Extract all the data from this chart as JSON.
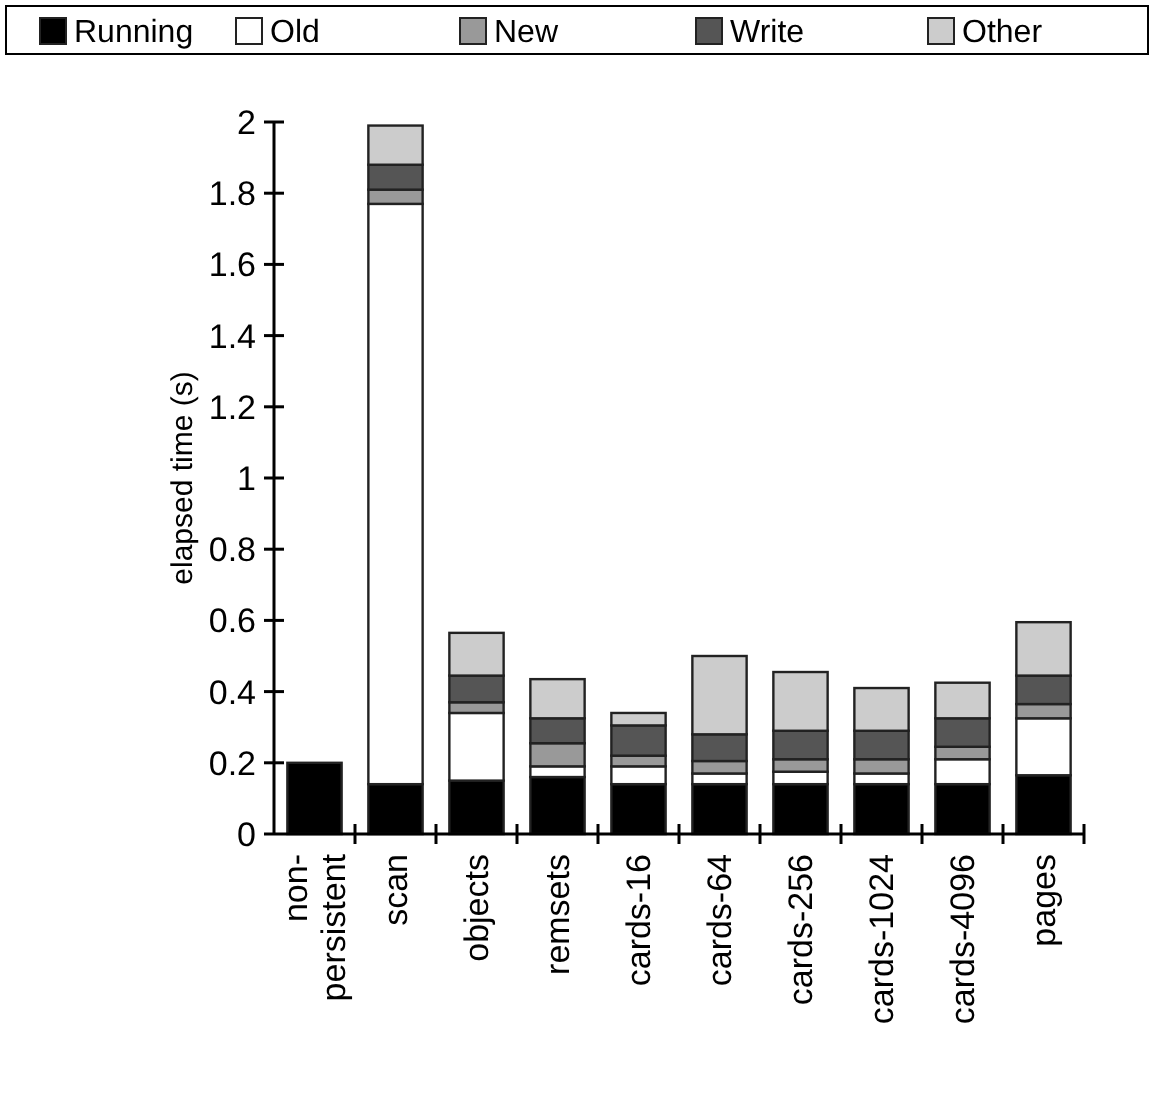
{
  "chart_data": {
    "type": "bar",
    "stacked": true,
    "ylabel": "elapsed time (s)",
    "categories": [
      "non-persistent",
      "scan",
      "objects",
      "remsets",
      "cards-16",
      "cards-64",
      "cards-256",
      "cards-1024",
      "cards-4096",
      "pages"
    ],
    "series": [
      {
        "name": "Running",
        "color": "#000000",
        "values": [
          0.2,
          0.14,
          0.15,
          0.16,
          0.14,
          0.14,
          0.14,
          0.14,
          0.14,
          0.165
        ]
      },
      {
        "name": "Old",
        "color": "#ffffff",
        "values": [
          0,
          1.63,
          0.19,
          0.03,
          0.05,
          0.03,
          0.035,
          0.03,
          0.07,
          0.16
        ]
      },
      {
        "name": "New",
        "color": "#999999",
        "values": [
          0,
          0.04,
          0.03,
          0.065,
          0.03,
          0.035,
          0.035,
          0.04,
          0.035,
          0.04
        ]
      },
      {
        "name": "Write",
        "color": "#555555",
        "values": [
          0,
          0.07,
          0.075,
          0.07,
          0.085,
          0.075,
          0.08,
          0.08,
          0.08,
          0.08
        ]
      },
      {
        "name": "Other",
        "color": "#cccccc",
        "values": [
          0,
          0.11,
          0.12,
          0.11,
          0.035,
          0.22,
          0.165,
          0.12,
          0.1,
          0.15
        ]
      }
    ],
    "ylim": [
      0,
      2
    ],
    "yticks": [
      0,
      0.2,
      0.4,
      0.6,
      0.8,
      1,
      1.2,
      1.4,
      1.6,
      1.8,
      2
    ],
    "legend": "top",
    "grid": false
  }
}
